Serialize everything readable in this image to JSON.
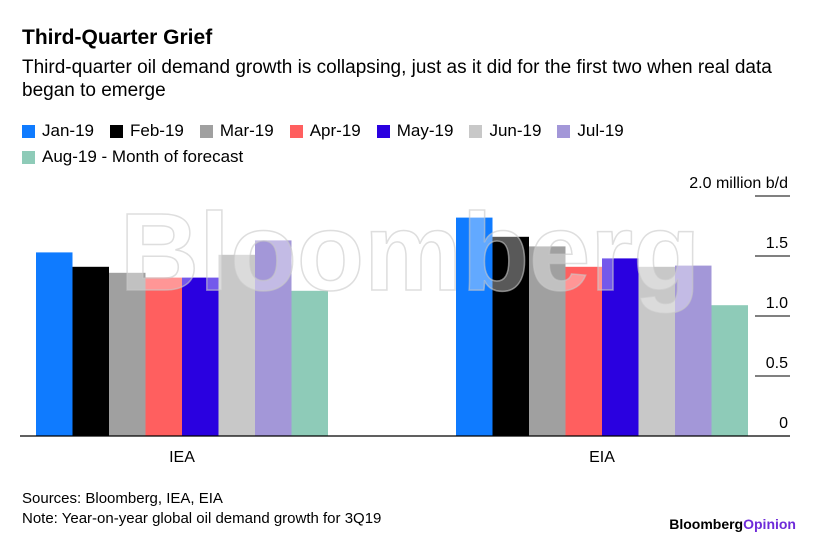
{
  "title": "Third-Quarter Grief",
  "subtitle": "Third-quarter oil demand growth is collapsing, just as it did for the first two when real data began to emerge",
  "source": "Sources: Bloomberg, IEA, EIA",
  "note": "Note: Year-on-year global oil demand growth for 3Q19",
  "brand": {
    "name": "Bloomberg",
    "suffix": "Opinion",
    "color": "#6e2bd9"
  },
  "watermark": "Bloomberg",
  "chart_data": {
    "type": "bar",
    "categories": [
      "IEA",
      "EIA"
    ],
    "ylabel": "million b/d",
    "ylim": [
      0,
      2.0
    ],
    "yticks": [
      {
        "v": 0,
        "label": "0"
      },
      {
        "v": 0.5,
        "label": "0.5"
      },
      {
        "v": 1.0,
        "label": "1.0"
      },
      {
        "v": 1.5,
        "label": "1.5"
      },
      {
        "v": 2.0,
        "label": "2.0 million b/d"
      }
    ],
    "legend_position": "top",
    "series": [
      {
        "name": "Jan-19",
        "color": "#0f7bff",
        "values": [
          1.53,
          1.82
        ]
      },
      {
        "name": "Feb-19",
        "color": "#000000",
        "values": [
          1.41,
          1.66
        ]
      },
      {
        "name": "Mar-19",
        "color": "#a0a0a0",
        "values": [
          1.36,
          1.58
        ]
      },
      {
        "name": "Apr-19",
        "color": "#ff5f5f",
        "values": [
          1.32,
          1.41
        ]
      },
      {
        "name": "May-19",
        "color": "#2a00e0",
        "values": [
          1.32,
          1.48
        ]
      },
      {
        "name": "Jun-19",
        "color": "#c8c8c8",
        "values": [
          1.51,
          1.41
        ]
      },
      {
        "name": "Jul-19",
        "color": "#a397d8",
        "values": [
          1.63,
          1.42
        ]
      },
      {
        "name": "Aug-19 - Month of forecast",
        "color": "#8ecbb8",
        "values": [
          1.21,
          1.09
        ]
      }
    ]
  }
}
